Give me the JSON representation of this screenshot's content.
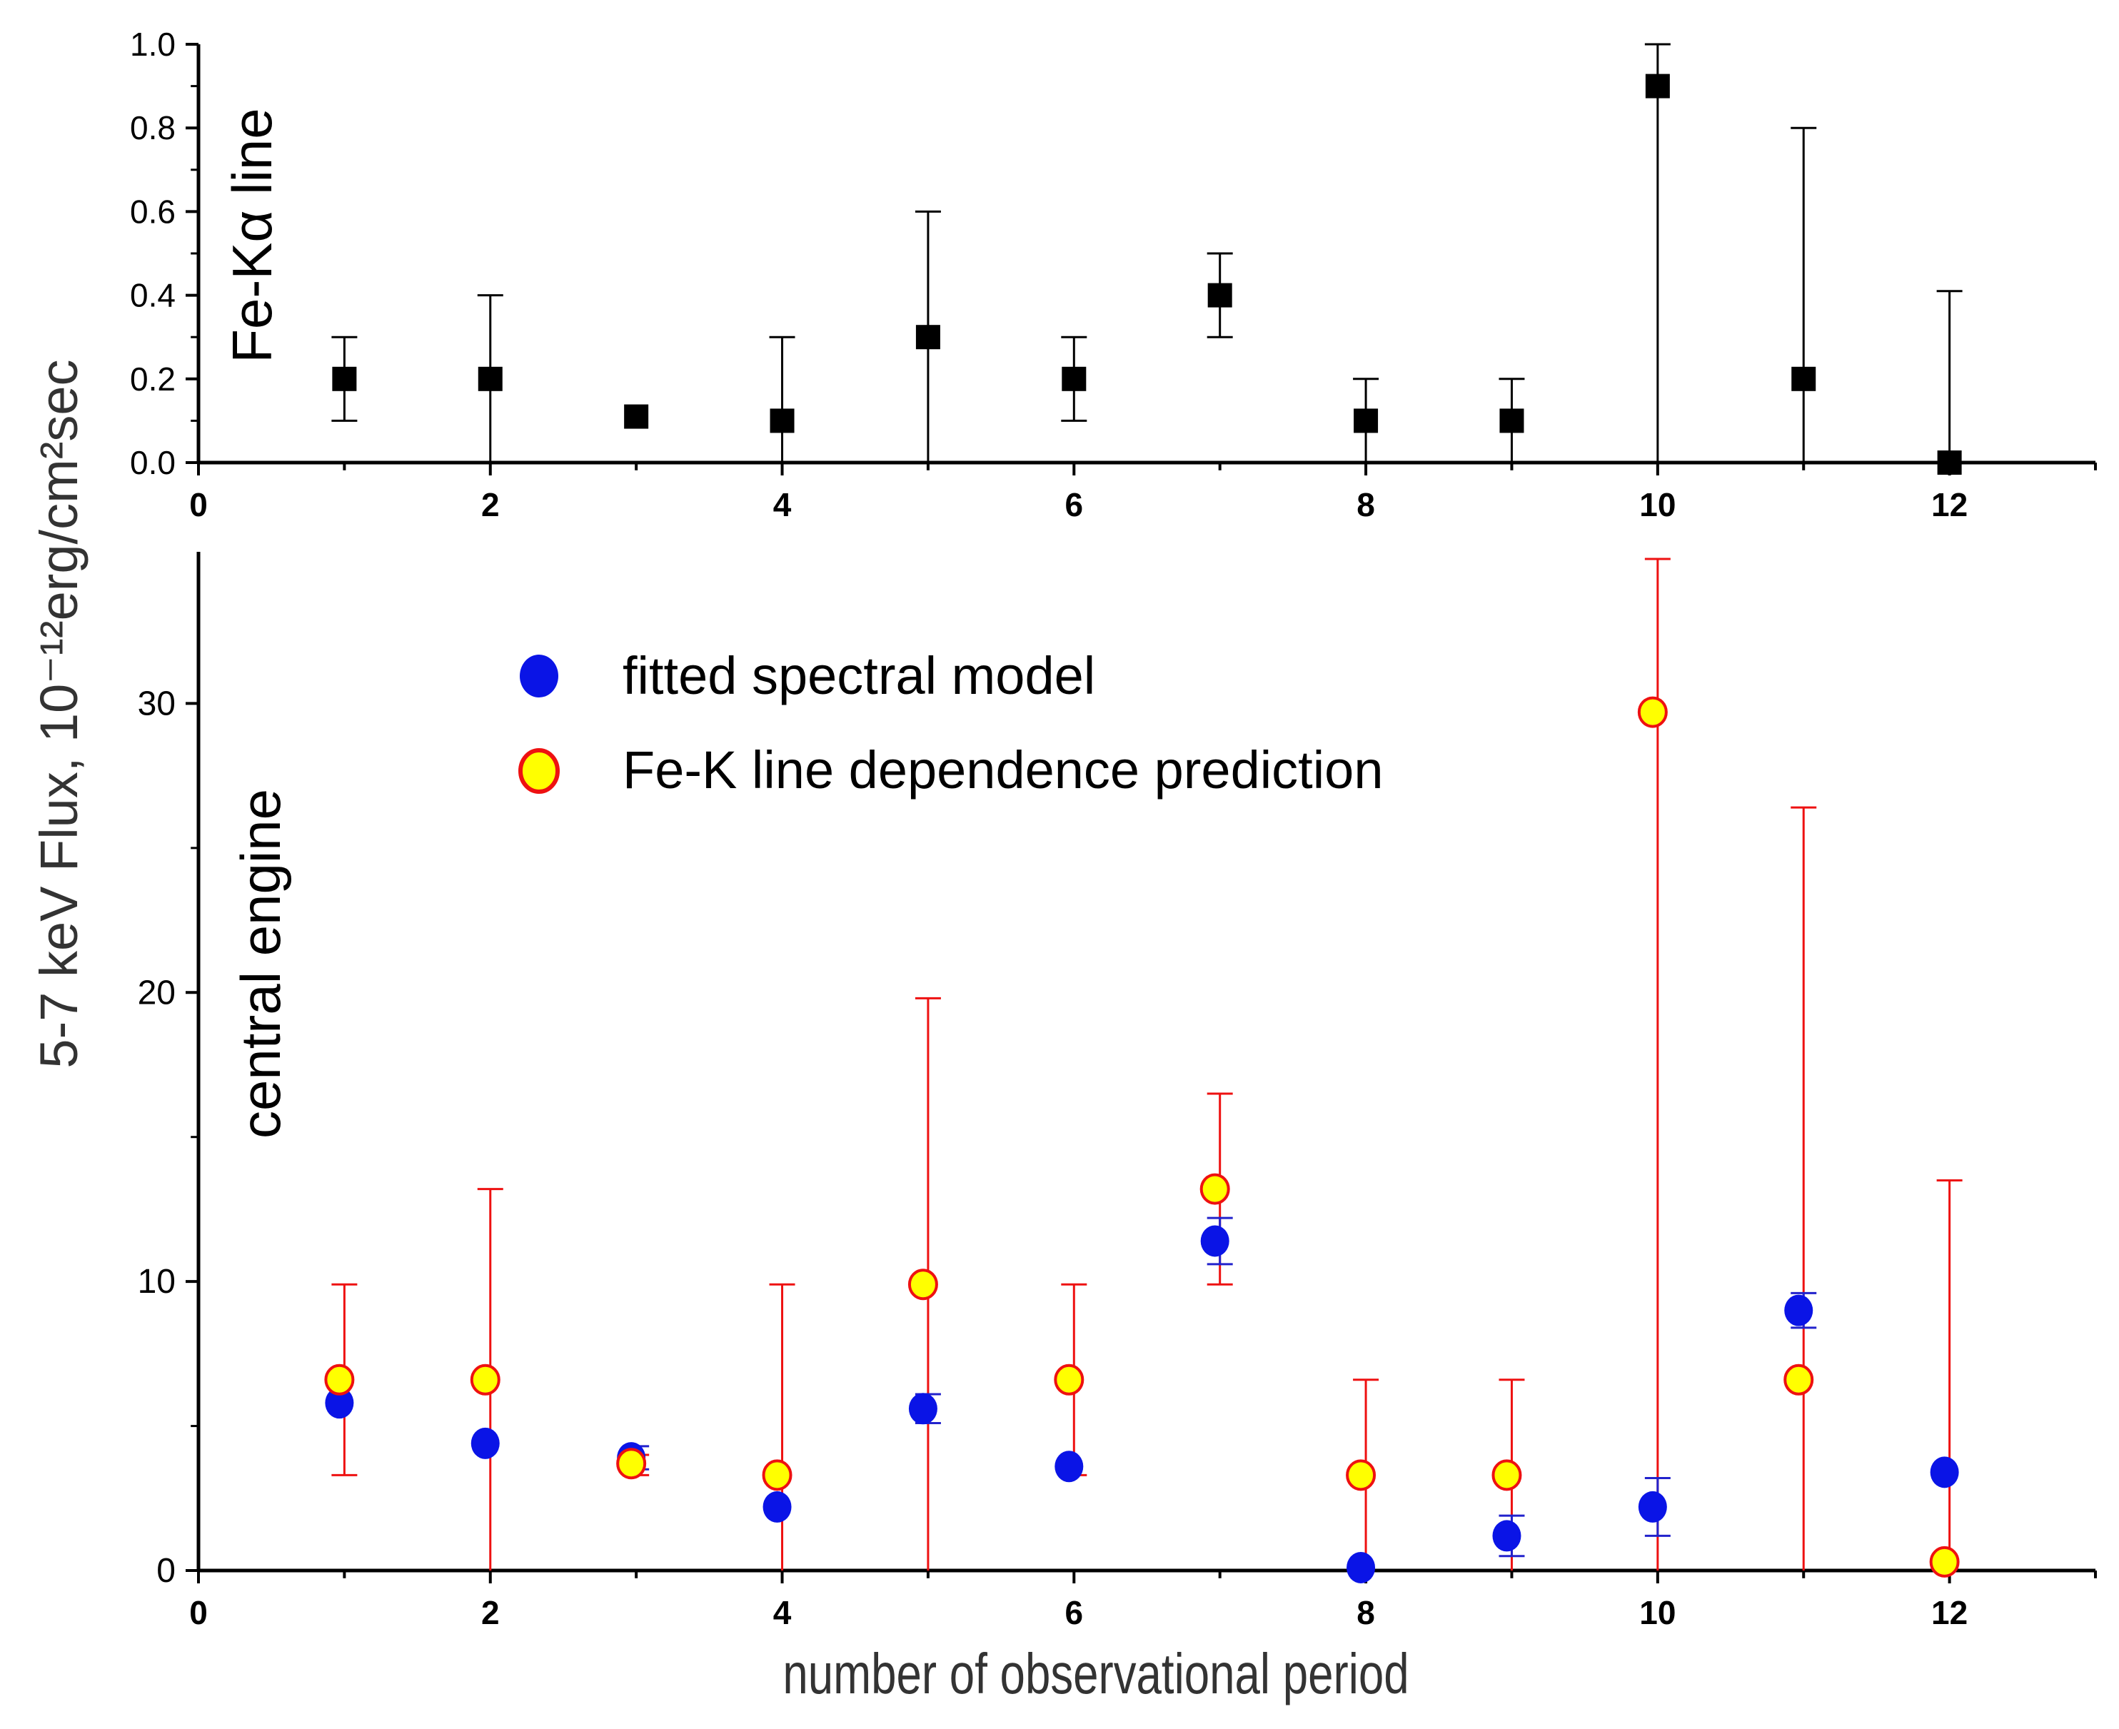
{
  "colors": {
    "axis": "#000000",
    "square_marker": "#000000",
    "fitted_marker": "#0a14e6",
    "prediction_fill": "#ffff00",
    "prediction_edge": "#ee1111",
    "prediction_errorbar": "#ee1111",
    "fitted_errorbar": "#2222cc"
  },
  "shared": {
    "ylabel": "5-7 keV Flux, 10⁻¹²erg/cm²sec",
    "xlabel": "number of observational period"
  },
  "chart_data": [
    {
      "type": "scatter",
      "title": "",
      "panel_label": "Fe-Kα line",
      "xlim": [
        0,
        13
      ],
      "ylim": [
        0,
        1.0
      ],
      "xticks": [
        "0",
        "2",
        "4",
        "6",
        "8",
        "10",
        "12"
      ],
      "yticks": [
        "0.0",
        "0.2",
        "0.4",
        "0.6",
        "0.8",
        "1.0"
      ],
      "grid": false,
      "series": [
        {
          "name": "Fe-Kα line",
          "marker": "square",
          "x": [
            1,
            2,
            3,
            4,
            5,
            6,
            7,
            8,
            9,
            10,
            11,
            12
          ],
          "y": [
            0.2,
            0.2,
            0.11,
            0.1,
            0.3,
            0.2,
            0.4,
            0.1,
            0.1,
            0.9,
            0.2,
            0.0
          ],
          "y_low": [
            0.1,
            0.0,
            null,
            0.0,
            0.0,
            0.1,
            0.3,
            0.0,
            0.0,
            0.0,
            0.0,
            0.0
          ],
          "y_high": [
            0.3,
            0.4,
            null,
            0.3,
            0.6,
            0.3,
            0.5,
            0.2,
            0.2,
            1.0,
            0.8,
            0.41
          ]
        }
      ]
    },
    {
      "type": "scatter",
      "title": "",
      "panel_label": "central engine",
      "xlim": [
        0,
        13
      ],
      "ylim": [
        0,
        35
      ],
      "xticks": [
        "0",
        "2",
        "4",
        "6",
        "8",
        "10",
        "12"
      ],
      "yticks": [
        "0",
        "10",
        "20",
        "30"
      ],
      "xlabel": "number of observational period",
      "grid": false,
      "legend_position": "top-center",
      "series": [
        {
          "name": "fitted spectral model",
          "marker": "circle",
          "x": [
            1,
            2,
            3,
            4,
            5,
            6,
            7,
            8,
            9,
            10,
            11,
            12
          ],
          "y": [
            5.8,
            4.4,
            3.9,
            2.2,
            5.6,
            3.6,
            11.4,
            0.1,
            1.2,
            2.2,
            9.0,
            3.4
          ],
          "y_low": [
            null,
            null,
            3.5,
            null,
            5.1,
            null,
            10.6,
            null,
            0.5,
            1.2,
            8.4,
            null
          ],
          "y_high": [
            null,
            null,
            4.3,
            null,
            6.1,
            null,
            12.2,
            null,
            1.9,
            3.2,
            9.6,
            null
          ]
        },
        {
          "name": "Fe-K line dependence prediction",
          "marker": "circle",
          "x": [
            1,
            2,
            3,
            4,
            5,
            6,
            7,
            8,
            9,
            10,
            11,
            12
          ],
          "y": [
            6.6,
            6.6,
            3.7,
            3.3,
            9.9,
            6.6,
            13.2,
            3.3,
            3.3,
            29.7,
            6.6,
            0.3
          ],
          "y_low": [
            3.3,
            0.0,
            3.3,
            0.0,
            0.0,
            3.3,
            9.9,
            0.0,
            0.0,
            0.0,
            0.0,
            0.0
          ],
          "y_high": [
            9.9,
            13.2,
            4.0,
            9.9,
            19.8,
            9.9,
            16.5,
            6.6,
            6.6,
            35,
            26.4,
            13.5
          ]
        }
      ]
    }
  ]
}
